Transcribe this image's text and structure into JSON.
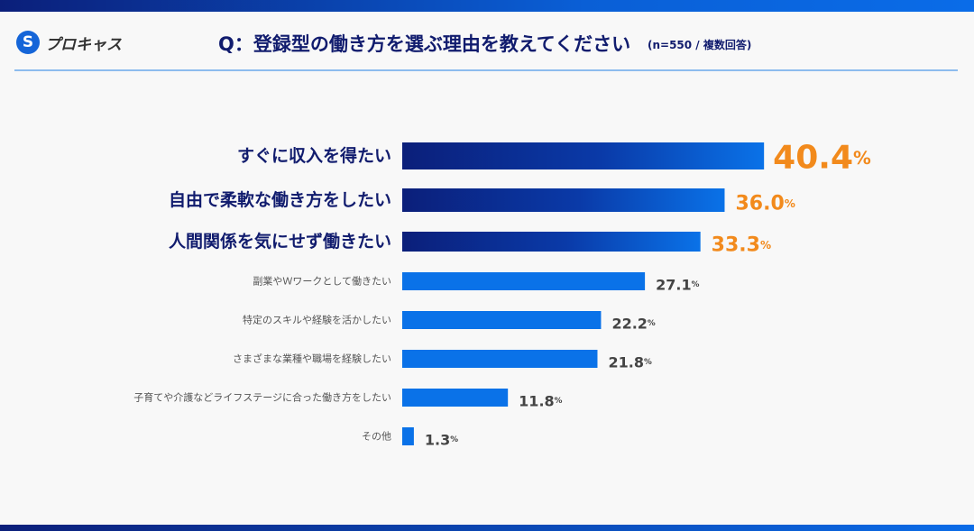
{
  "header": {
    "logo_text": "プロキャス",
    "logo_mark": "S",
    "title": "Q：登録型の働き方を選ぶ理由を教えてください",
    "note": "(n=550 / 複数回答)"
  },
  "colors": {
    "dark": "#0b1f7a",
    "blue": "#0a72e8",
    "accent": "#f28a1c",
    "label_dark": "#111c6e",
    "label_gray": "#555555"
  },
  "chart_data": {
    "type": "bar",
    "orientation": "horizontal",
    "unit": "%",
    "categories": [
      "すぐに収入を得たい",
      "自由で柔軟な働き方をしたい",
      "人間関係を気にせず働きたい",
      "副業やＷワークとして働きたい",
      "特定のスキルや経験を活かしたい",
      "さまざまな業種や職場を経験したい",
      "子育てや介護などライフステージに合った働き方をしたい",
      "その他"
    ],
    "values": [
      40.4,
      36.0,
      33.3,
      27.1,
      22.2,
      21.8,
      11.8,
      1.3
    ],
    "highlighted_top": 3
  }
}
